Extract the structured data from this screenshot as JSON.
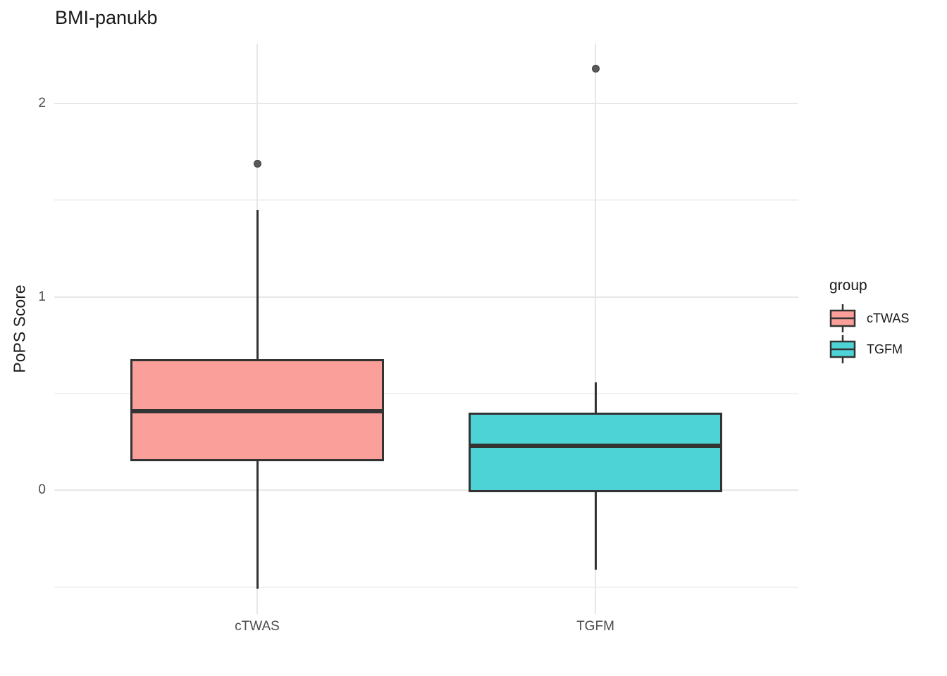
{
  "chart_data": {
    "type": "boxplot",
    "title": "BMI-panukb",
    "xlabel": "",
    "ylabel": "PoPS Score",
    "categories": [
      "cTWAS",
      "TGFM"
    ],
    "yticks": [
      0,
      1,
      2
    ],
    "y_minor_ticks": [
      -0.5,
      0.5,
      1.5
    ],
    "ylim": [
      -0.64,
      2.31
    ],
    "grid": true,
    "series": [
      {
        "name": "cTWAS",
        "color": "#FA9F99",
        "whisker_min": -0.51,
        "q1": 0.15,
        "median": 0.41,
        "q3": 0.68,
        "whisker_max": 1.45,
        "outliers": [
          1.69
        ]
      },
      {
        "name": "TGFM",
        "color": "#4DD2D6",
        "whisker_min": -0.41,
        "q1": -0.01,
        "median": 0.23,
        "q3": 0.4,
        "whisker_max": 0.56,
        "outliers": [
          2.18
        ]
      }
    ],
    "legend": {
      "title": "group",
      "position": "right"
    }
  },
  "colors": {
    "background": "#FFFFFF",
    "title_text": "#1A1A1A",
    "axis_text": "#4D4D4D",
    "grid_major": "#E7E7E7",
    "grid_minor": "#F2F2F2",
    "box_stroke": "#333333",
    "outlier_fill": "#595959",
    "outlier_stroke": "#3E3E3E"
  }
}
